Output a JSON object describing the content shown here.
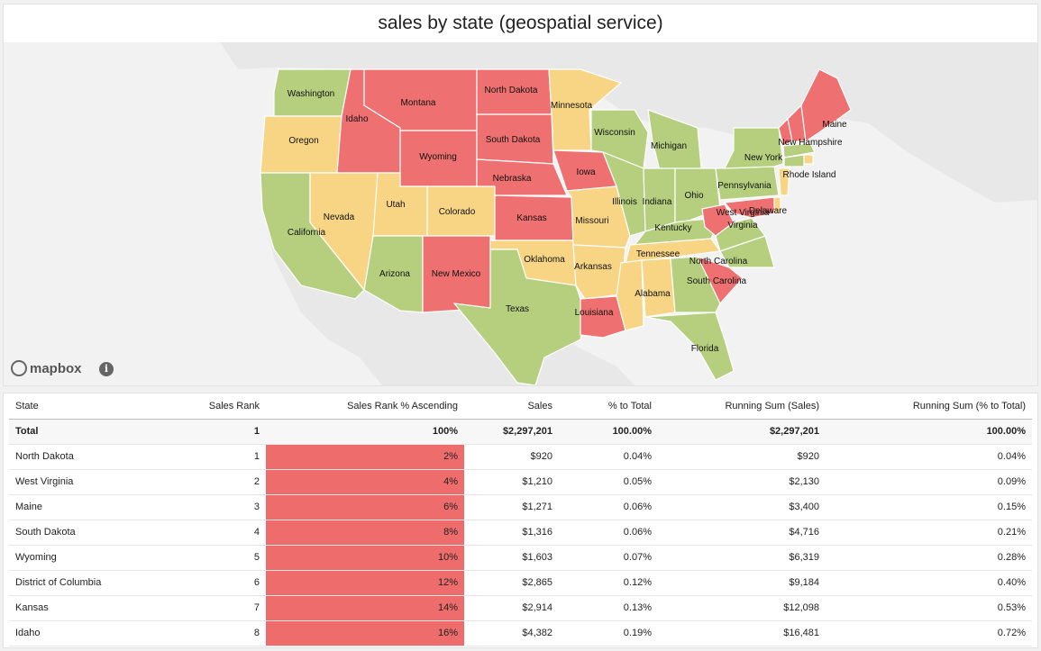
{
  "title": "sales by state (geospatial service)",
  "map": {
    "attribution_logo": "mapbox",
    "info_icon": "info-icon",
    "colors": {
      "red": "#ee7070",
      "yellow": "#f7d584",
      "green": "#b5cf7f",
      "water": "#f2f2f2",
      "land_outside": "#e6e6e6"
    },
    "state_labels": [
      "Washington",
      "Idaho",
      "Montana",
      "North Dakota",
      "Minnesota",
      "Oregon",
      "Wyoming",
      "South Dakota",
      "Wisconsin",
      "Michigan",
      "Maine",
      "New Hampshire",
      "New York",
      "Rhode Island",
      "Iowa",
      "Nebraska",
      "Pennsylvania",
      "Nevada",
      "Utah",
      "Colorado",
      "Illinois",
      "Indiana",
      "Ohio",
      "California",
      "Kansas",
      "Missouri",
      "Kentucky",
      "West Virginia",
      "Delaware",
      "Virginia",
      "Tennessee",
      "Oklahoma",
      "North Carolina",
      "Arizona",
      "New Mexico",
      "Arkansas",
      "South Carolina",
      "Alabama",
      "Texas",
      "Louisiana",
      "Florida"
    ]
  },
  "table": {
    "columns": [
      "State",
      "Sales Rank",
      "Sales Rank % Ascending",
      "Sales",
      "% to Total",
      "Running Sum (Sales)",
      "Running Sum (% to Total)"
    ],
    "bar_color": "#ee6c6c",
    "total": {
      "state": "Total",
      "rank": "1",
      "rank_pct": "100%",
      "sales": "$2,297,201",
      "pct_total": "100.00%",
      "run_sales": "$2,297,201",
      "run_pct": "100.00%"
    },
    "rows": [
      {
        "state": "North Dakota",
        "rank": "1",
        "rank_pct": "2%",
        "sales": "$920",
        "pct_total": "0.04%",
        "run_sales": "$920",
        "run_pct": "0.04%"
      },
      {
        "state": "West Virginia",
        "rank": "2",
        "rank_pct": "4%",
        "sales": "$1,210",
        "pct_total": "0.05%",
        "run_sales": "$2,130",
        "run_pct": "0.09%"
      },
      {
        "state": "Maine",
        "rank": "3",
        "rank_pct": "6%",
        "sales": "$1,271",
        "pct_total": "0.06%",
        "run_sales": "$3,400",
        "run_pct": "0.15%"
      },
      {
        "state": "South Dakota",
        "rank": "4",
        "rank_pct": "8%",
        "sales": "$1,316",
        "pct_total": "0.06%",
        "run_sales": "$4,716",
        "run_pct": "0.21%"
      },
      {
        "state": "Wyoming",
        "rank": "5",
        "rank_pct": "10%",
        "sales": "$1,603",
        "pct_total": "0.07%",
        "run_sales": "$6,319",
        "run_pct": "0.28%"
      },
      {
        "state": "District of Columbia",
        "rank": "6",
        "rank_pct": "12%",
        "sales": "$2,865",
        "pct_total": "0.12%",
        "run_sales": "$9,184",
        "run_pct": "0.40%"
      },
      {
        "state": "Kansas",
        "rank": "7",
        "rank_pct": "14%",
        "sales": "$2,914",
        "pct_total": "0.13%",
        "run_sales": "$12,098",
        "run_pct": "0.53%"
      },
      {
        "state": "Idaho",
        "rank": "8",
        "rank_pct": "16%",
        "sales": "$4,382",
        "pct_total": "0.19%",
        "run_sales": "$16,481",
        "run_pct": "0.72%"
      }
    ]
  }
}
